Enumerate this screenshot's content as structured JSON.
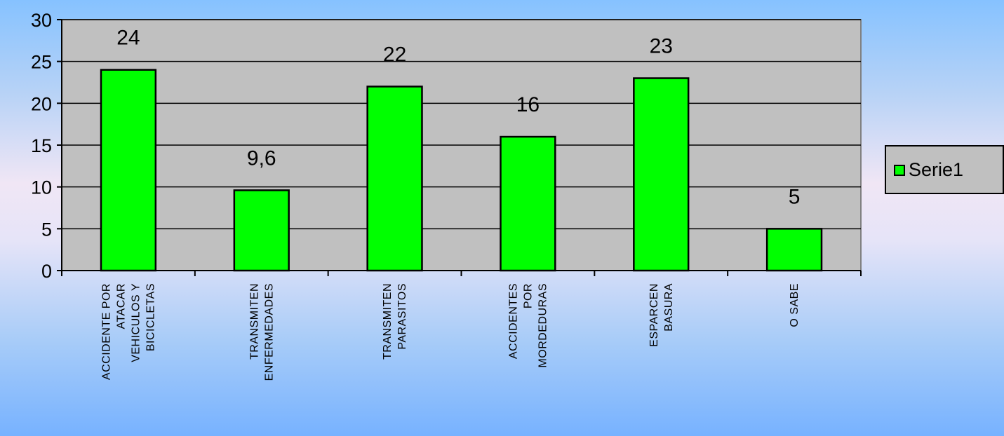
{
  "chart_data": {
    "type": "bar",
    "categories": [
      [
        "ACCIDENTE POR",
        "ATACAR",
        "VEHICULOS Y",
        "BICICLETAS"
      ],
      [
        "TRANSMITEN",
        "ENFERMEDADES"
      ],
      [
        "TRANSMITEN",
        "PARASITOS"
      ],
      [
        "ACCIDENTES",
        "POR",
        "MORDEDURAS"
      ],
      [
        "ESPARCEN",
        "BASURA"
      ],
      [
        "O SABE"
      ]
    ],
    "series": [
      {
        "name": "Serie1",
        "values": [
          24,
          9.6,
          22,
          16,
          23,
          5
        ],
        "color": "#00ff00"
      }
    ],
    "data_labels": [
      "24",
      "9,6",
      "22",
      "16",
      "23",
      "5"
    ],
    "y_ticks": [
      0,
      5,
      10,
      15,
      20,
      25,
      30
    ],
    "ylim": [
      0,
      30
    ],
    "grid": true,
    "plot_background": "#c0c0c0",
    "legend_position": "right",
    "title": "",
    "xlabel": "",
    "ylabel": ""
  }
}
